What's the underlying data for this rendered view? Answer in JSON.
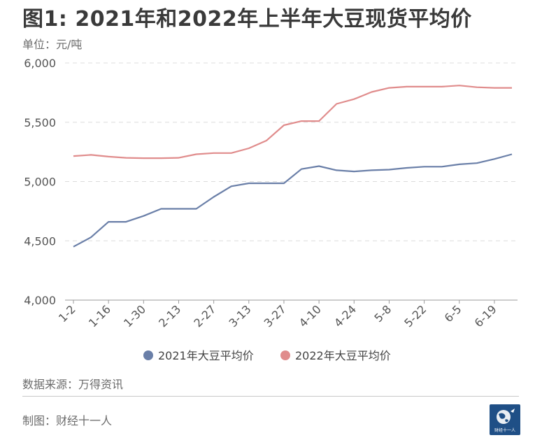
{
  "header": {
    "title": "图1: 2021年和2022年上半年大豆现货平均价",
    "unit": "单位：元/吨"
  },
  "footer": {
    "source": "数据来源：万得资讯",
    "maker": "制图：财经十一人",
    "logo_text": "财经十一人"
  },
  "chart_data": {
    "type": "line",
    "categories": [
      "1-2",
      "1-9",
      "1-16",
      "1-23",
      "1-30",
      "2-6",
      "2-13",
      "2-20",
      "2-27",
      "3-6",
      "3-13",
      "3-20",
      "3-27",
      "4-3",
      "4-10",
      "4-17",
      "4-24",
      "5-1",
      "5-8",
      "5-15",
      "5-22",
      "5-29",
      "6-5",
      "6-12",
      "6-19",
      "6-26"
    ],
    "x_tick_labels": [
      "1-2",
      "1-16",
      "1-30",
      "2-13",
      "2-27",
      "3-13",
      "3-27",
      "4-10",
      "4-24",
      "5-8",
      "5-22",
      "6-5",
      "6-19"
    ],
    "y_tick_labels": [
      "6,000",
      "5,500",
      "5,000",
      "4,500",
      "4,000"
    ],
    "ylim": [
      4000,
      6000
    ],
    "grid": true,
    "legend_position": "bottom",
    "series": [
      {
        "name": "2021年大豆平均价",
        "color": "#6a7fa8",
        "values": [
          4450,
          4530,
          4660,
          4660,
          4710,
          4770,
          4770,
          4770,
          4870,
          4960,
          4985,
          4985,
          4985,
          5105,
          5130,
          5095,
          5085,
          5095,
          5100,
          5115,
          5125,
          5125,
          5145,
          5155,
          5190,
          5230
        ]
      },
      {
        "name": "2022年大豆平均价",
        "color": "#e08c8c",
        "values": [
          5215,
          5225,
          5210,
          5200,
          5197,
          5197,
          5200,
          5230,
          5240,
          5240,
          5280,
          5345,
          5475,
          5510,
          5510,
          5655,
          5695,
          5755,
          5790,
          5800,
          5800,
          5800,
          5810,
          5795,
          5790,
          5790
        ]
      }
    ]
  }
}
